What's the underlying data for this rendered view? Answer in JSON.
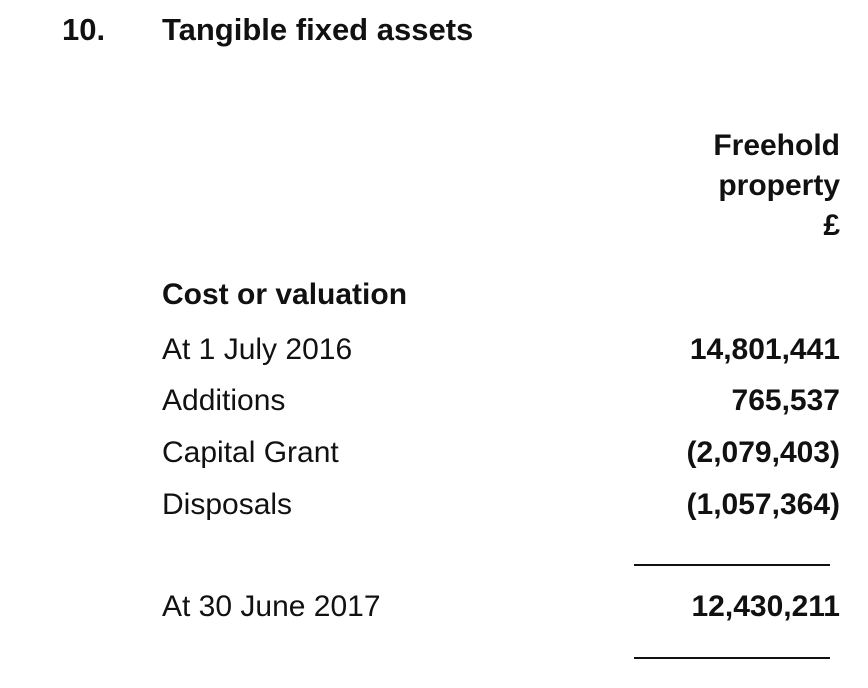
{
  "note": {
    "number": "10.",
    "title": "Tangible fixed assets"
  },
  "column_header": {
    "line1": "Freehold",
    "line2": "property",
    "line3": "£"
  },
  "section": {
    "heading": "Cost or valuation"
  },
  "rows": [
    {
      "label": "At 1 July 2016",
      "value": "14,801,441"
    },
    {
      "label": "Additions",
      "value": "765,537"
    },
    {
      "label": "Capital Grant",
      "value": "(2,079,403)"
    },
    {
      "label": "Disposals",
      "value": "(1,057,364)"
    }
  ],
  "total": {
    "label": "At 30 June 2017",
    "value": "12,430,211"
  }
}
